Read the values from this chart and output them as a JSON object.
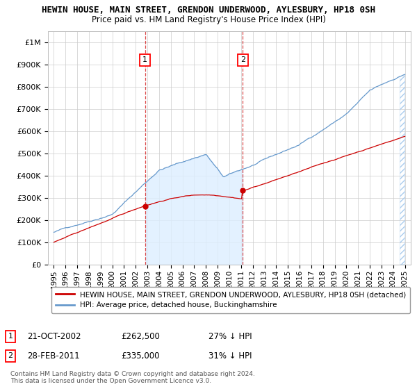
{
  "title": "HEWIN HOUSE, MAIN STREET, GRENDON UNDERWOOD, AYLESBURY, HP18 0SH",
  "subtitle": "Price paid vs. HM Land Registry's House Price Index (HPI)",
  "title_fontsize": 9,
  "subtitle_fontsize": 8.5,
  "ylim": [
    0,
    1050000
  ],
  "yticks": [
    0,
    100000,
    200000,
    300000,
    400000,
    500000,
    600000,
    700000,
    800000,
    900000,
    1000000
  ],
  "ytick_labels": [
    "£0",
    "£100K",
    "£200K",
    "£300K",
    "£400K",
    "£500K",
    "£600K",
    "£700K",
    "£800K",
    "£900K",
    "£1M"
  ],
  "xlim_start": 1994.5,
  "xlim_end": 2025.5,
  "hpi_color": "#6699cc",
  "hpi_fill_color": "#ddeeff",
  "price_color": "#cc0000",
  "sale1_year": 2002.8,
  "sale1_price": 262500,
  "sale2_year": 2011.15,
  "sale2_price": 335000,
  "legend_line1": "HEWIN HOUSE, MAIN STREET, GRENDON UNDERWOOD, AYLESBURY, HP18 0SH (detached)",
  "legend_line2": "HPI: Average price, detached house, Buckinghamshire",
  "note1_label": "1",
  "note1_date": "21-OCT-2002",
  "note1_price": "£262,500",
  "note1_pct": "27% ↓ HPI",
  "note2_label": "2",
  "note2_date": "28-FEB-2011",
  "note2_price": "£335,000",
  "note2_pct": "31% ↓ HPI",
  "footer": "Contains HM Land Registry data © Crown copyright and database right 2024.\nThis data is licensed under the Open Government Licence v3.0.",
  "background_color": "#ffffff",
  "grid_color": "#cccccc"
}
